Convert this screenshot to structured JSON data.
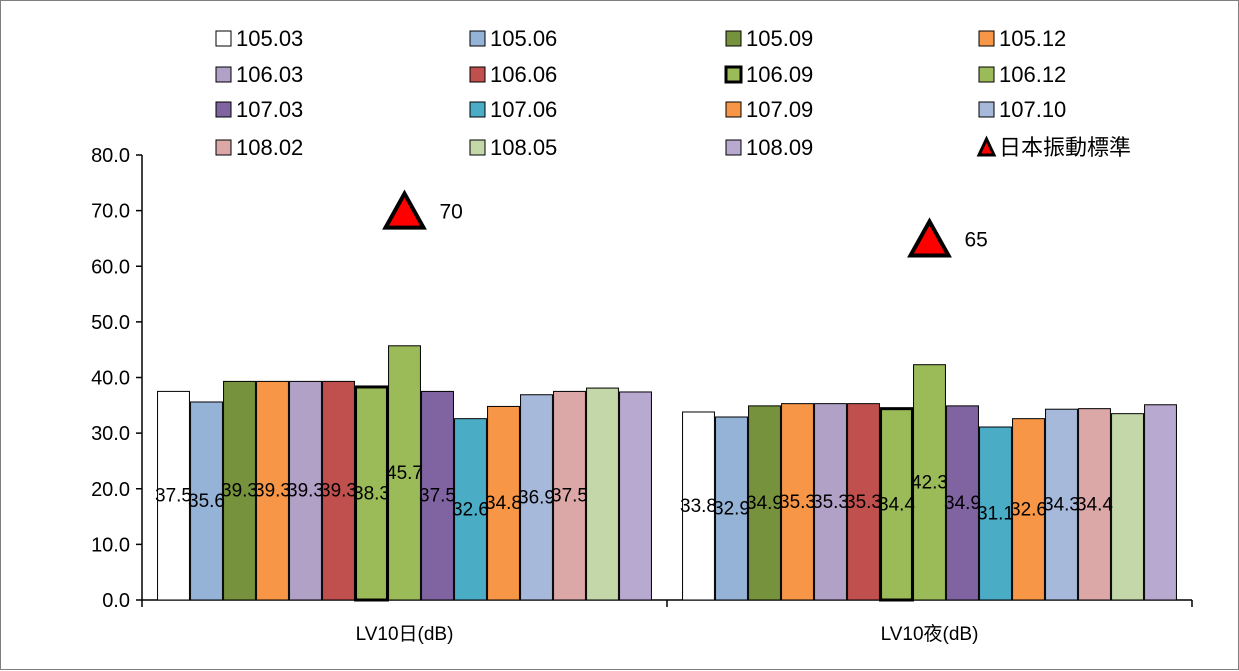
{
  "chart_data": {
    "type": "bar",
    "categories": [
      "LV10日(dB)",
      "LV10夜(dB)"
    ],
    "ylim": [
      0,
      80
    ],
    "yticks": [
      "0.0",
      "10.0",
      "20.0",
      "30.0",
      "40.0",
      "50.0",
      "60.0",
      "70.0",
      "80.0"
    ],
    "series": [
      {
        "name": "105.03",
        "color": "#ffffff",
        "values": [
          37.5,
          33.8
        ],
        "labels": [
          "37.5",
          "33.8"
        ]
      },
      {
        "name": "105.06",
        "color": "#95b3d7",
        "values": [
          35.6,
          32.9
        ],
        "labels": [
          "35.6",
          "32.9"
        ]
      },
      {
        "name": "105.09",
        "color": "#76923c",
        "values": [
          39.3,
          34.9
        ],
        "labels": [
          "39.3",
          "34.9"
        ]
      },
      {
        "name": "105.12",
        "color": "#f79646",
        "values": [
          39.3,
          35.3
        ],
        "labels": [
          "39.3",
          "35.3"
        ]
      },
      {
        "name": "106.03",
        "color": "#b2a1c7",
        "values": [
          39.3,
          35.3
        ],
        "labels": [
          "39.3",
          "35.3"
        ]
      },
      {
        "name": "106.06",
        "color": "#c0504d",
        "values": [
          39.3,
          35.3
        ],
        "labels": [
          "39.3",
          "35.3"
        ]
      },
      {
        "name": "106.09",
        "color": "#9bbb59",
        "values": [
          38.3,
          34.4
        ],
        "labels": [
          "38.3",
          "34.4"
        ],
        "border": "heavy"
      },
      {
        "name": "106.12",
        "color": "#9bbb59",
        "values": [
          45.7,
          42.3
        ],
        "labels": [
          "45.7",
          "42.3"
        ]
      },
      {
        "name": "107.03",
        "color": "#8064a2",
        "values": [
          37.5,
          34.9
        ],
        "labels": [
          "37.5",
          "34.9"
        ]
      },
      {
        "name": "107.06",
        "color": "#4bacc6",
        "values": [
          32.6,
          31.1
        ],
        "labels": [
          "32.6",
          "31.1"
        ]
      },
      {
        "name": "107.09",
        "color": "#f79646",
        "values": [
          34.8,
          32.6
        ],
        "labels": [
          "34.8",
          "32.6"
        ]
      },
      {
        "name": "107.10",
        "color": "#a6b9db",
        "values": [
          36.9,
          34.3
        ],
        "labels": [
          "36.9",
          "34.3"
        ]
      },
      {
        "name": "108.02",
        "color": "#dba7a7",
        "values": [
          37.5,
          34.4
        ],
        "labels": [
          "37.5",
          "34.4"
        ]
      },
      {
        "name": "108.05",
        "color": "#c4d7a8",
        "values": [
          38.1,
          33.5
        ],
        "labels": [
          "",
          ""
        ]
      },
      {
        "name": "108.09",
        "color": "#b7a9cf",
        "values": [
          37.4,
          35.1
        ],
        "labels": [
          "",
          ""
        ]
      }
    ],
    "standard": {
      "name": "日本振動標準",
      "color": "#ff0000",
      "values": [
        70,
        65
      ],
      "labels": [
        "70",
        "65"
      ]
    }
  }
}
